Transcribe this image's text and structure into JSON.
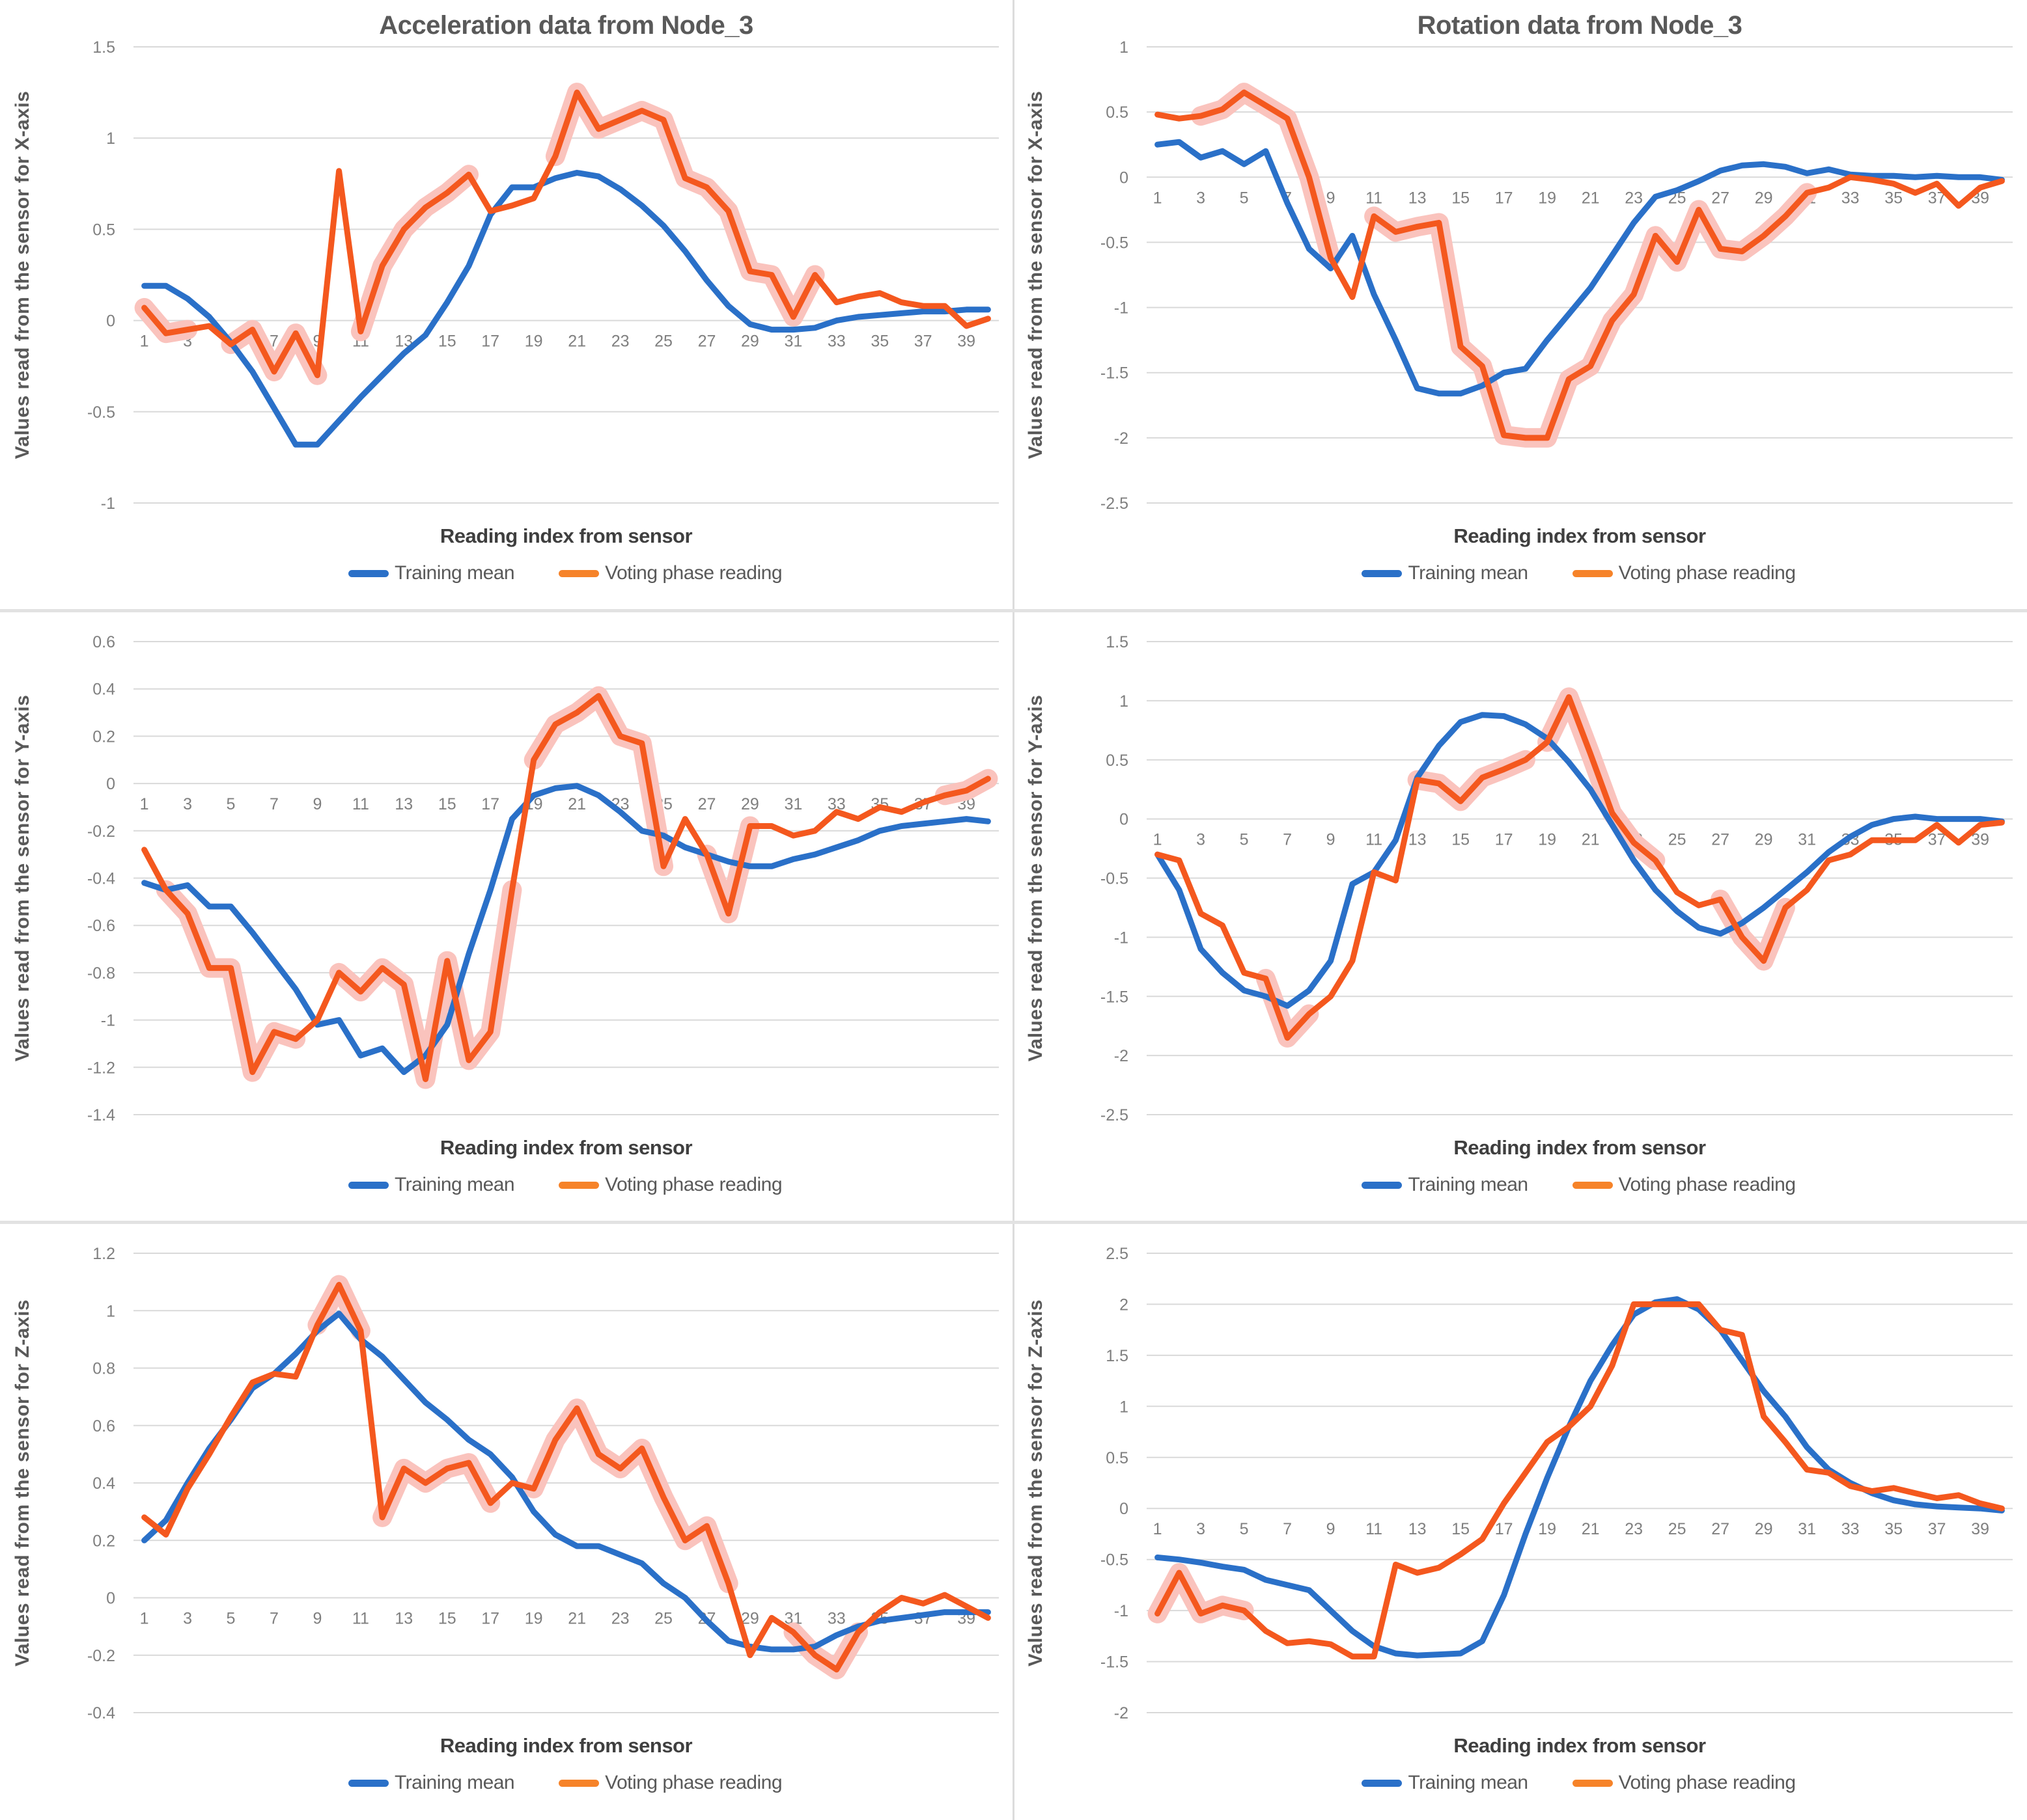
{
  "colors": {
    "train": "#2A70C8",
    "vote": "#F4581E",
    "vote_swatch": "#F68329",
    "highlight": "#FAC3BD",
    "grid": "#D9D9D9",
    "tick_text": "#7F7F7F",
    "heading_text": "#595959",
    "axis_title_text": "#3F3F3F",
    "background": "#FFFFFF"
  },
  "legend": {
    "items": [
      {
        "label": "Training mean",
        "series": "train"
      },
      {
        "label": "Voting phase reading",
        "series": "vote"
      }
    ]
  },
  "chart_data": [
    {
      "type": "line",
      "title": "Acceleration data from Node_3",
      "ylabel": "Values read from the sensor for X-axis",
      "xlabel": "Reading index from sensor",
      "x_tick_labels": [
        1,
        3,
        5,
        7,
        9,
        11,
        13,
        15,
        17,
        19,
        21,
        23,
        25,
        27,
        29,
        31,
        33,
        35,
        37,
        39
      ],
      "ylim": [
        -1,
        1.5
      ],
      "yticks": [
        1.5,
        1,
        0.5,
        0,
        -0.5,
        -1
      ],
      "grid": "horizontal",
      "legend_position": "bottom",
      "series": [
        {
          "name": "Training mean",
          "values": [
            0.19,
            0.19,
            0.12,
            0.02,
            -0.12,
            -0.28,
            -0.48,
            -0.68,
            -0.68,
            -0.55,
            -0.42,
            -0.3,
            -0.18,
            -0.08,
            0.1,
            0.3,
            0.58,
            0.73,
            0.73,
            0.78,
            0.81,
            0.79,
            0.72,
            0.63,
            0.52,
            0.38,
            0.22,
            0.08,
            -0.02,
            -0.05,
            -0.05,
            -0.04,
            0,
            0.02,
            0.03,
            0.04,
            0.05,
            0.05,
            0.06,
            0.06
          ]
        },
        {
          "name": "Voting phase reading",
          "values": [
            0.07,
            -0.07,
            -0.05,
            -0.03,
            -0.13,
            -0.05,
            -0.28,
            -0.07,
            -0.3,
            0.82,
            -0.06,
            0.3,
            0.5,
            0.62,
            0.7,
            0.8,
            0.6,
            0.63,
            0.67,
            0.9,
            1.25,
            1.05,
            1.1,
            1.15,
            1.1,
            0.78,
            0.73,
            0.6,
            0.27,
            0.25,
            0.02,
            0.25,
            0.1,
            0.13,
            0.15,
            0.1,
            0.08,
            0.08,
            -0.03,
            0.01
          ],
          "highlight_index_ranges": [
            [
              1,
              3
            ],
            [
              5,
              9
            ],
            [
              11,
              16
            ],
            [
              20,
              32
            ]
          ]
        }
      ]
    },
    {
      "type": "line",
      "title": "Rotation data from Node_3",
      "ylabel": "Values read from the sensor for X-axis",
      "xlabel": "Reading index from sensor",
      "x_tick_labels": [
        1,
        3,
        5,
        7,
        9,
        11,
        13,
        15,
        17,
        19,
        21,
        23,
        25,
        27,
        29,
        31,
        33,
        35,
        37,
        39
      ],
      "ylim": [
        -2.5,
        1
      ],
      "yticks": [
        1,
        0.5,
        0,
        -0.5,
        -1,
        -1.5,
        -2,
        -2.5
      ],
      "grid": "horizontal",
      "legend_position": "bottom",
      "series": [
        {
          "name": "Training mean",
          "values": [
            0.25,
            0.27,
            0.15,
            0.2,
            0.1,
            0.2,
            -0.2,
            -0.55,
            -0.7,
            -0.45,
            -0.9,
            -1.25,
            -1.62,
            -1.66,
            -1.66,
            -1.6,
            -1.5,
            -1.47,
            -1.25,
            -1.05,
            -0.85,
            -0.6,
            -0.35,
            -0.15,
            -0.1,
            -0.03,
            0.05,
            0.09,
            0.1,
            0.08,
            0.03,
            0.06,
            0.02,
            0.01,
            0.01,
            0,
            0.01,
            0,
            0,
            -0.02
          ]
        },
        {
          "name": "Voting phase reading",
          "values": [
            0.48,
            0.45,
            0.47,
            0.52,
            0.65,
            0.55,
            0.45,
            0,
            -0.62,
            -0.92,
            -0.3,
            -0.42,
            -0.38,
            -0.35,
            -1.3,
            -1.45,
            -1.98,
            -2,
            -2,
            -1.55,
            -1.45,
            -1.1,
            -0.9,
            -0.45,
            -0.65,
            -0.25,
            -0.55,
            -0.57,
            -0.45,
            -0.3,
            -0.12,
            -0.08,
            0,
            -0.02,
            -0.05,
            -0.12,
            -0.05,
            -0.22,
            -0.08,
            -0.03
          ],
          "highlight_index_ranges": [
            [
              3,
              9
            ],
            [
              11,
              31
            ]
          ]
        }
      ]
    },
    {
      "type": "line",
      "title": "",
      "ylabel": "Values read from the sensor for Y-axis",
      "xlabel": "Reading index from sensor",
      "x_tick_labels": [
        1,
        3,
        5,
        7,
        9,
        11,
        13,
        15,
        17,
        19,
        21,
        23,
        25,
        27,
        29,
        31,
        33,
        35,
        37,
        39
      ],
      "ylim": [
        -1.4,
        0.6
      ],
      "yticks": [
        0.6,
        0.4,
        0.2,
        0,
        -0.2,
        -0.4,
        -0.6,
        -0.8,
        -1,
        -1.2,
        -1.4
      ],
      "grid": "horizontal",
      "legend_position": "bottom",
      "series": [
        {
          "name": "Training mean",
          "values": [
            -0.42,
            -0.45,
            -0.43,
            -0.52,
            -0.52,
            -0.63,
            -0.75,
            -0.87,
            -1.02,
            -1,
            -1.15,
            -1.12,
            -1.22,
            -1.15,
            -1.02,
            -0.72,
            -0.45,
            -0.15,
            -0.05,
            -0.02,
            -0.01,
            -0.05,
            -0.12,
            -0.2,
            -0.22,
            -0.27,
            -0.3,
            -0.33,
            -0.35,
            -0.35,
            -0.32,
            -0.3,
            -0.27,
            -0.24,
            -0.2,
            -0.18,
            -0.17,
            -0.16,
            -0.15,
            -0.16
          ]
        },
        {
          "name": "Voting phase reading",
          "values": [
            -0.28,
            -0.45,
            -0.55,
            -0.78,
            -0.78,
            -1.22,
            -1.05,
            -1.08,
            -1,
            -0.8,
            -0.88,
            -0.78,
            -0.85,
            -1.25,
            -0.75,
            -1.17,
            -1.05,
            -0.45,
            0.1,
            0.25,
            0.3,
            0.37,
            0.2,
            0.17,
            -0.35,
            -0.15,
            -0.3,
            -0.55,
            -0.18,
            -0.18,
            -0.22,
            -0.2,
            -0.12,
            -0.15,
            -0.1,
            -0.12,
            -0.08,
            -0.05,
            -0.03,
            0.02
          ],
          "highlight_index_ranges": [
            [
              2,
              8
            ],
            [
              10,
              18
            ],
            [
              19,
              25
            ],
            [
              27,
              29
            ],
            [
              38,
              40
            ]
          ]
        }
      ]
    },
    {
      "type": "line",
      "title": "",
      "ylabel": "Values read from the sensor for Y-axis",
      "xlabel": "Reading index from sensor",
      "x_tick_labels": [
        1,
        3,
        5,
        7,
        9,
        11,
        13,
        15,
        17,
        19,
        21,
        23,
        25,
        27,
        29,
        31,
        33,
        35,
        37,
        39
      ],
      "ylim": [
        -2.5,
        1.5
      ],
      "yticks": [
        1.5,
        1,
        0.5,
        0,
        -0.5,
        -1,
        -1.5,
        -2,
        -2.5
      ],
      "grid": "horizontal",
      "legend_position": "bottom",
      "series": [
        {
          "name": "Training mean",
          "values": [
            -0.3,
            -0.6,
            -1.1,
            -1.3,
            -1.45,
            -1.5,
            -1.58,
            -1.45,
            -1.2,
            -0.55,
            -0.45,
            -0.18,
            0.35,
            0.62,
            0.82,
            0.88,
            0.87,
            0.8,
            0.68,
            0.48,
            0.25,
            -0.05,
            -0.35,
            -0.6,
            -0.78,
            -0.92,
            -0.97,
            -0.88,
            -0.75,
            -0.6,
            -0.45,
            -0.28,
            -0.15,
            -0.05,
            0,
            0.02,
            0,
            0,
            0,
            -0.02
          ]
        },
        {
          "name": "Voting phase reading",
          "values": [
            -0.3,
            -0.35,
            -0.8,
            -0.9,
            -1.3,
            -1.35,
            -1.85,
            -1.65,
            -1.5,
            -1.2,
            -0.45,
            -0.52,
            0.33,
            0.3,
            0.15,
            0.35,
            0.42,
            0.5,
            0.65,
            1.03,
            0.55,
            0.05,
            -0.2,
            -0.35,
            -0.62,
            -0.73,
            -0.68,
            -1,
            -1.2,
            -0.75,
            -0.6,
            -0.35,
            -0.3,
            -0.18,
            -0.18,
            -0.18,
            -0.05,
            -0.2,
            -0.05,
            -0.03
          ],
          "highlight_index_ranges": [
            [
              6,
              8
            ],
            [
              13,
              18
            ],
            [
              19,
              24
            ],
            [
              27,
              30
            ]
          ]
        }
      ]
    },
    {
      "type": "line",
      "title": "",
      "ylabel": "Values read from the sensor for Z-axis",
      "xlabel": "Reading index from sensor",
      "x_tick_labels": [
        1,
        3,
        5,
        7,
        9,
        11,
        13,
        15,
        17,
        19,
        21,
        23,
        25,
        27,
        29,
        31,
        33,
        35,
        37,
        39
      ],
      "ylim": [
        -0.4,
        1.2
      ],
      "yticks": [
        1.2,
        1,
        0.8,
        0.6,
        0.4,
        0.2,
        0,
        -0.2,
        -0.4
      ],
      "grid": "horizontal",
      "legend_position": "bottom",
      "series": [
        {
          "name": "Training mean",
          "values": [
            0.2,
            0.27,
            0.4,
            0.52,
            0.62,
            0.73,
            0.78,
            0.85,
            0.93,
            0.99,
            0.9,
            0.84,
            0.76,
            0.68,
            0.62,
            0.55,
            0.5,
            0.42,
            0.3,
            0.22,
            0.18,
            0.18,
            0.15,
            0.12,
            0.05,
            0,
            -0.08,
            -0.15,
            -0.17,
            -0.18,
            -0.18,
            -0.17,
            -0.13,
            -0.1,
            -0.08,
            -0.07,
            -0.06,
            -0.05,
            -0.05,
            -0.05
          ]
        },
        {
          "name": "Voting phase reading",
          "values": [
            0.28,
            0.22,
            0.38,
            0.5,
            0.63,
            0.75,
            0.78,
            0.77,
            0.95,
            1.09,
            0.93,
            0.28,
            0.45,
            0.4,
            0.45,
            0.47,
            0.33,
            0.4,
            0.38,
            0.55,
            0.66,
            0.5,
            0.45,
            0.52,
            0.35,
            0.2,
            0.25,
            0.05,
            -0.2,
            -0.07,
            -0.12,
            -0.2,
            -0.25,
            -0.12,
            -0.05,
            0,
            -0.02,
            0.01,
            -0.03,
            -0.07
          ],
          "highlight_index_ranges": [
            [
              9,
              11
            ],
            [
              12,
              17
            ],
            [
              19,
              28
            ],
            [
              31,
              34
            ]
          ]
        }
      ]
    },
    {
      "type": "line",
      "title": "",
      "ylabel": "Values read from the sensor for Z-axis",
      "xlabel": "Reading index from sensor",
      "x_tick_labels": [
        1,
        3,
        5,
        7,
        9,
        11,
        13,
        15,
        17,
        19,
        21,
        23,
        25,
        27,
        29,
        31,
        33,
        35,
        37,
        39
      ],
      "ylim": [
        -2,
        2.5
      ],
      "yticks": [
        2.5,
        2,
        1.5,
        1,
        0.5,
        0,
        -0.5,
        -1,
        -1.5,
        -2
      ],
      "grid": "horizontal",
      "legend_position": "bottom",
      "series": [
        {
          "name": "Training mean",
          "values": [
            -0.48,
            -0.5,
            -0.53,
            -0.57,
            -0.6,
            -0.7,
            -0.75,
            -0.8,
            -1,
            -1.2,
            -1.35,
            -1.42,
            -1.44,
            -1.43,
            -1.42,
            -1.3,
            -0.85,
            -0.25,
            0.3,
            0.8,
            1.25,
            1.6,
            1.9,
            2.02,
            2.05,
            1.95,
            1.75,
            1.45,
            1.15,
            0.9,
            0.6,
            0.38,
            0.25,
            0.15,
            0.08,
            0.04,
            0.02,
            0.01,
            0,
            -0.02
          ]
        },
        {
          "name": "Voting phase reading",
          "values": [
            -1.03,
            -0.63,
            -1.03,
            -0.95,
            -1,
            -1.2,
            -1.32,
            -1.3,
            -1.33,
            -1.45,
            -1.45,
            -0.55,
            -0.63,
            -0.58,
            -0.45,
            -0.3,
            0.05,
            0.35,
            0.65,
            0.8,
            1,
            1.4,
            2,
            2,
            2,
            2,
            1.75,
            1.7,
            0.9,
            0.65,
            0.38,
            0.35,
            0.22,
            0.17,
            0.2,
            0.15,
            0.1,
            0.13,
            0.05,
            0
          ],
          "highlight_index_ranges": [
            [
              1,
              5
            ]
          ]
        }
      ]
    }
  ]
}
